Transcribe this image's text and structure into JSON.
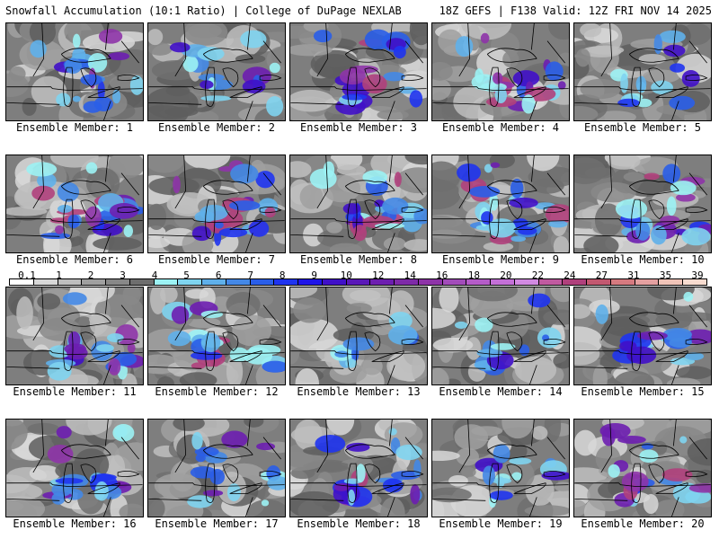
{
  "header": {
    "title_left": "Snowfall Accumulation (10:1 Ratio) | College of DuPage NEXLAB",
    "title_right": "18Z GEFS | F138 Valid: 12Z FRI NOV 14 2025"
  },
  "panels": [
    {
      "label": "Ensemble Member: 1",
      "intensity": 0.65
    },
    {
      "label": "Ensemble Member: 2",
      "intensity": 0.45
    },
    {
      "label": "Ensemble Member: 3",
      "intensity": 0.6
    },
    {
      "label": "Ensemble Member: 4",
      "intensity": 0.75
    },
    {
      "label": "Ensemble Member: 5",
      "intensity": 0.4
    },
    {
      "label": "Ensemble Member: 6",
      "intensity": 0.85
    },
    {
      "label": "Ensemble Member: 7",
      "intensity": 0.8
    },
    {
      "label": "Ensemble Member: 8",
      "intensity": 0.75
    },
    {
      "label": "Ensemble Member: 9",
      "intensity": 0.8
    },
    {
      "label": "Ensemble Member: 10",
      "intensity": 0.7
    },
    {
      "label": "Ensemble Member: 11",
      "intensity": 0.6
    },
    {
      "label": "Ensemble Member: 12",
      "intensity": 0.7
    },
    {
      "label": "Ensemble Member: 13",
      "intensity": 0.2
    },
    {
      "label": "Ensemble Member: 14",
      "intensity": 0.3
    },
    {
      "label": "Ensemble Member: 15",
      "intensity": 0.45
    },
    {
      "label": "Ensemble Member: 16",
      "intensity": 0.6
    },
    {
      "label": "Ensemble Member: 17",
      "intensity": 0.4
    },
    {
      "label": "Ensemble Member: 18",
      "intensity": 0.7
    },
    {
      "label": "Ensemble Member: 19",
      "intensity": 0.3
    },
    {
      "label": "Ensemble Member: 20",
      "intensity": 0.65
    }
  ],
  "legend": {
    "levels": [
      "0.1",
      "1",
      "2",
      "3",
      "4",
      "5",
      "6",
      "7",
      "8",
      "9",
      "10",
      "12",
      "14",
      "16",
      "18",
      "20",
      "22",
      "24",
      "27",
      "31",
      "35",
      "39"
    ],
    "colors": [
      "#ffffff",
      "#d8d8d8",
      "#bebebe",
      "#a0a0a0",
      "#888888",
      "#6e6e6e",
      "#9cf2f4",
      "#7fd4ef",
      "#5fb0ea",
      "#4488e6",
      "#2a5ee8",
      "#1f34f0",
      "#1f14e8",
      "#4010c8",
      "#5a18b8",
      "#6d1eb0",
      "#7e2aa8",
      "#8e34a8",
      "#a24cba",
      "#b45cc8",
      "#c470d8",
      "#d28ae2",
      "#c05aa0",
      "#b0407c",
      "#c25870",
      "#d67a80",
      "#e4a0a0",
      "#f0c4b8",
      "#f8dcd0"
    ]
  }
}
